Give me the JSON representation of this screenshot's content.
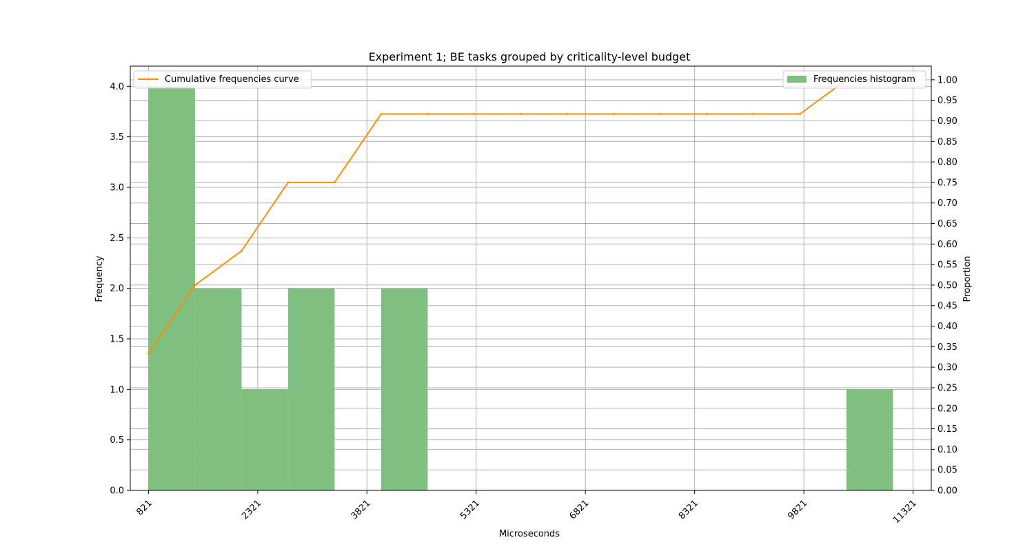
{
  "chart_data": {
    "type": "bar",
    "title": "Experiment 1; BE tasks grouped by criticality-level budget",
    "xlabel": "Microseconds",
    "ylabel": "Frequency",
    "y2label": "Proportion",
    "xlim": [
      571,
      11571
    ],
    "ylim": [
      0,
      4.2
    ],
    "y2lim": [
      0,
      1.0333
    ],
    "x_ticks": [
      821,
      2321,
      3821,
      5321,
      6821,
      8321,
      9821,
      11321
    ],
    "y_ticks": [
      0.0,
      0.5,
      1.0,
      1.5,
      2.0,
      2.5,
      3.0,
      3.5,
      4.0
    ],
    "y2_ticks": [
      0.0,
      0.05,
      0.1,
      0.15,
      0.2,
      0.25,
      0.3,
      0.35,
      0.4,
      0.45,
      0.5,
      0.55,
      0.6,
      0.65,
      0.7,
      0.75,
      0.8,
      0.85,
      0.9,
      0.95,
      1.0
    ],
    "bin_width": 639,
    "grid": true,
    "series": [
      {
        "name": "Frequencies histogram",
        "kind": "bar",
        "color": "#7fbf7f",
        "bin_starts": [
          821,
          1460,
          2099,
          2738,
          3377,
          4016,
          4655,
          5294,
          5933,
          6572,
          7211,
          7850,
          8489,
          9128,
          9767,
          10406
        ],
        "values": [
          4,
          2,
          1,
          2,
          0,
          2,
          0,
          0,
          0,
          0,
          0,
          0,
          0,
          0,
          0,
          1
        ],
        "legend_position": "upper-right"
      },
      {
        "name": "Cumulative frequencies curve",
        "kind": "line",
        "color": "#ff8c00",
        "axis": "right",
        "x": [
          821,
          1460,
          2099,
          2738,
          3377,
          4016,
          4655,
          5294,
          5933,
          6572,
          7211,
          7850,
          8489,
          9128,
          9767,
          10406,
          11045
        ],
        "values": [
          0.3333,
          0.5,
          0.5833,
          0.75,
          0.75,
          0.9167,
          0.9167,
          0.9167,
          0.9167,
          0.9167,
          0.9167,
          0.9167,
          0.9167,
          0.9167,
          0.9167,
          1.0,
          1.0
        ],
        "legend_position": "upper-left"
      }
    ]
  }
}
